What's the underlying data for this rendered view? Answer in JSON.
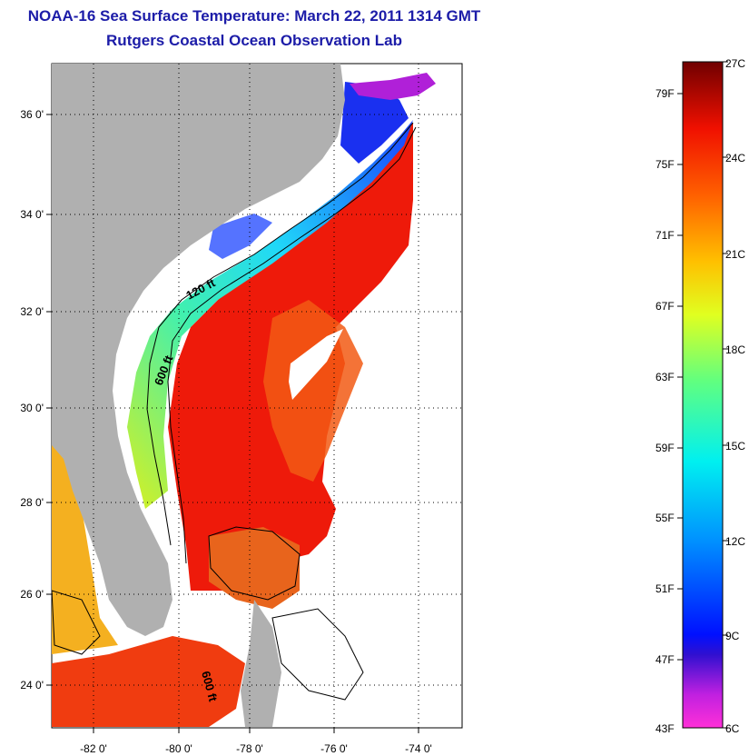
{
  "title": "NOAA-16 Sea Surface Temperature:  March 22, 2011 1314 GMT",
  "subtitle": "Rutgers Coastal Ocean Observation Lab",
  "map": {
    "lon_labels": [
      "-82 0'",
      "-80 0'",
      "-78 0'",
      "-76 0'",
      "-74 0'"
    ],
    "lat_labels": [
      "36 0'",
      "34 0'",
      "32 0'",
      "30 0'",
      "28 0'",
      "26 0'",
      "24 0'"
    ],
    "isobath_labels": [
      "120 ft",
      "600 ft",
      "600 ft"
    ],
    "colors": {
      "land": "#b0b0b0",
      "gulf_stream": "#ee1a0a",
      "shelf": "#38e8d0",
      "nearshore": "#1840ff"
    }
  },
  "colorbar": {
    "fahrenheit": [
      "79F",
      "75F",
      "71F",
      "67F",
      "63F",
      "59F",
      "55F",
      "51F",
      "47F",
      "43F"
    ],
    "celsius": [
      "27C",
      "24C",
      "21C",
      "18C",
      "15C",
      "12C",
      "9C",
      "6C"
    ]
  }
}
